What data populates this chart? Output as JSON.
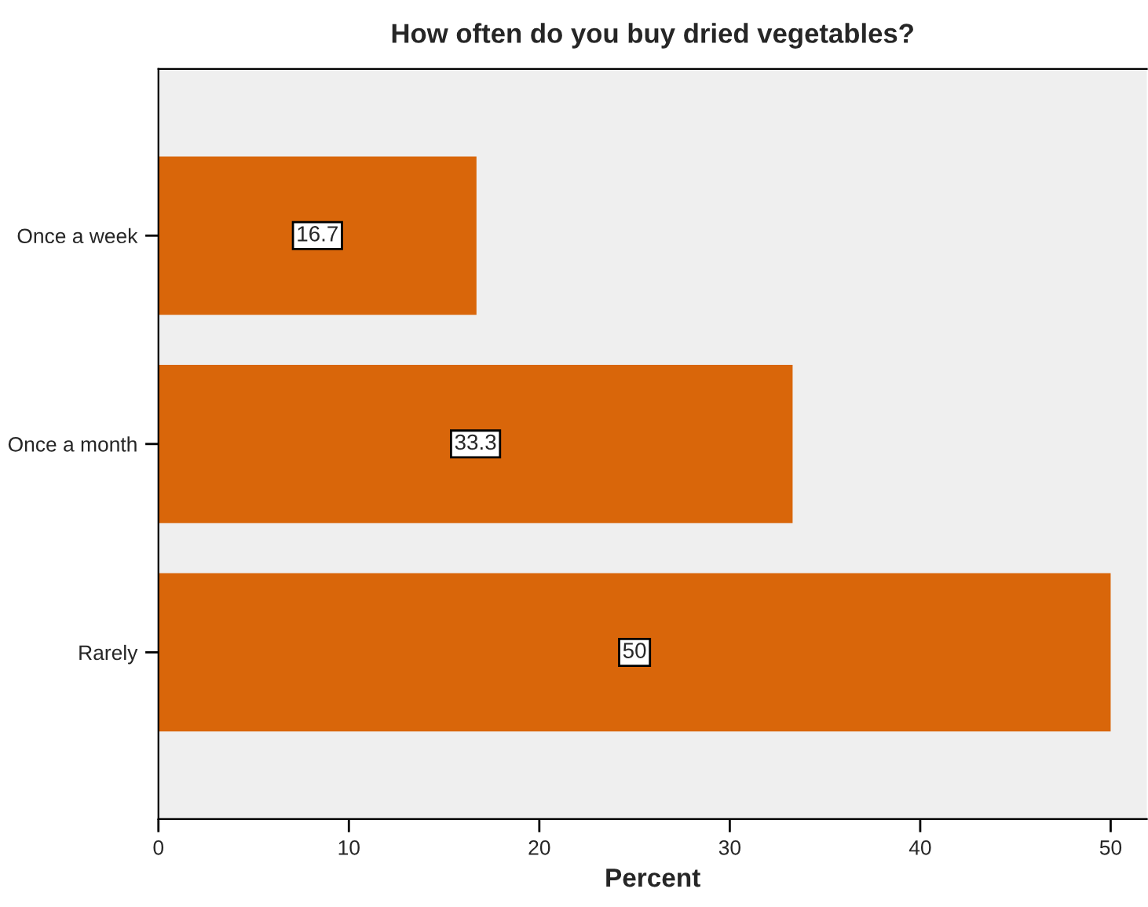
{
  "chart_data": {
    "type": "bar",
    "orientation": "horizontal",
    "title": "How often do you buy dried vegetables?",
    "xlabel": "Percent",
    "categories": [
      "Once a week",
      "Once a month",
      "Rarely"
    ],
    "values": [
      16.7,
      33.3,
      50
    ],
    "color": "#d9660a",
    "xlim": [
      0,
      51.9
    ],
    "xticks": [
      0,
      10,
      20,
      30,
      40,
      50
    ],
    "grid": false,
    "data_labels": true
  }
}
